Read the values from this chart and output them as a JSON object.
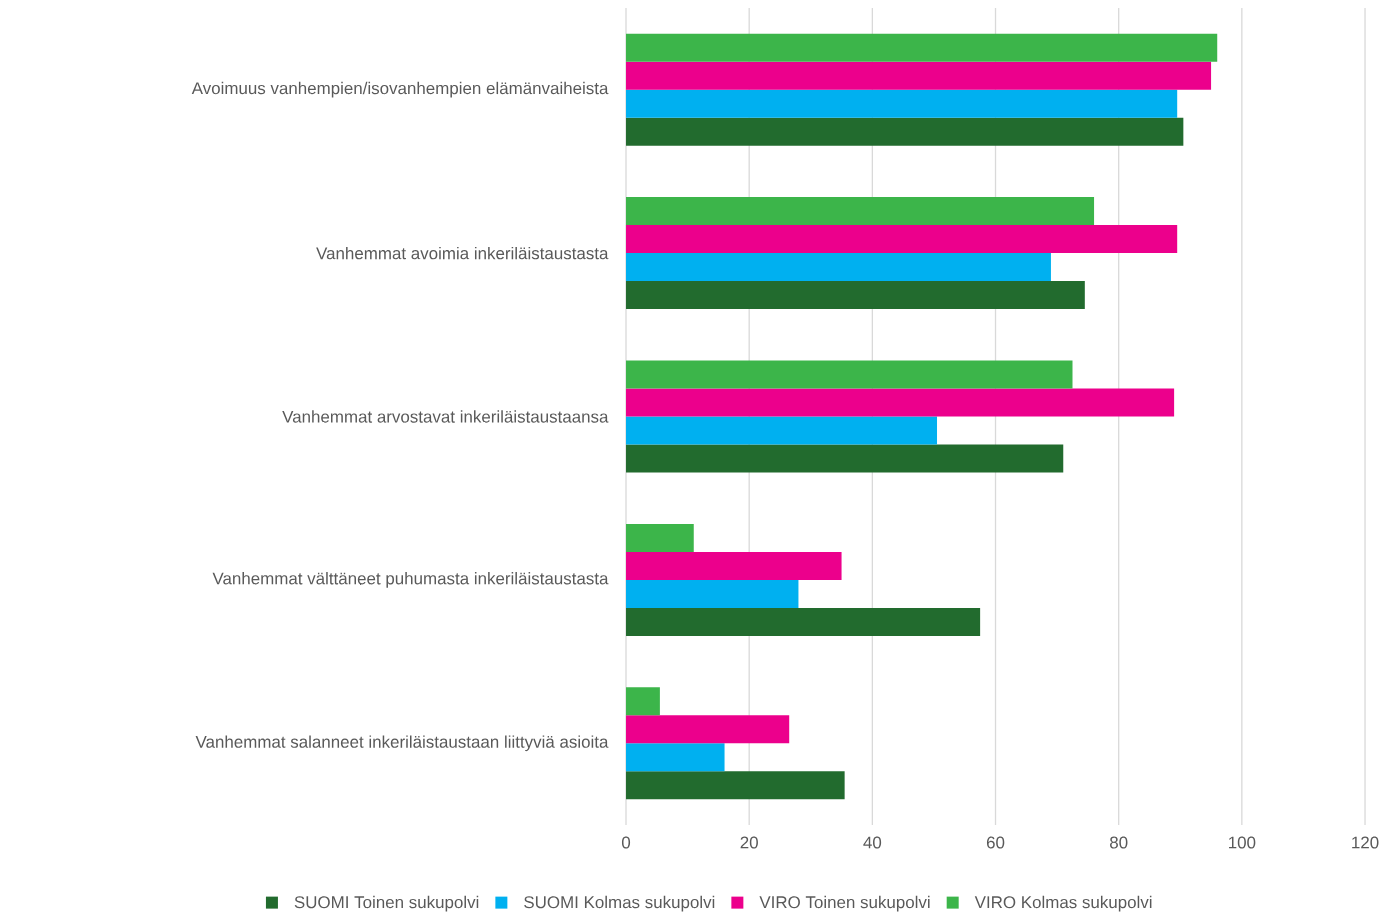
{
  "chart_data": {
    "type": "bar",
    "orientation": "horizontal",
    "categories": [
      "Avoimuus vanhempien/isovanhempien elämänvaiheista",
      "Vanhemmat avoimia inkeriläistaustasta",
      "Vanhemmat arvostavat inkeriläistaustaansa",
      "Vanhemmat välttäneet puhumasta inkeriläistaustasta",
      "Vanhemmat salanneet inkeriläistaustaan liittyviä asioita"
    ],
    "series": [
      {
        "name": "SUOMI Toinen sukupolvi",
        "color": "#226b2e",
        "values": [
          90.5,
          74.5,
          71,
          57.5,
          35.5
        ]
      },
      {
        "name": "SUOMI Kolmas sukupolvi",
        "color": "#00b0f0",
        "values": [
          89.5,
          69,
          50.5,
          28,
          16
        ]
      },
      {
        "name": "VIRO Toinen sukupolvi",
        "color": "#ec008c",
        "values": [
          95,
          89.5,
          89,
          35,
          26.5
        ]
      },
      {
        "name": "VIRO Kolmas sukupolvi",
        "color": "#3cb54a",
        "values": [
          96,
          76,
          72.5,
          11,
          5.5
        ]
      }
    ],
    "xlim": [
      0,
      120
    ],
    "xticks": [
      0,
      20,
      40,
      60,
      80,
      100,
      120
    ],
    "grid": "x",
    "legend": "bottom"
  }
}
